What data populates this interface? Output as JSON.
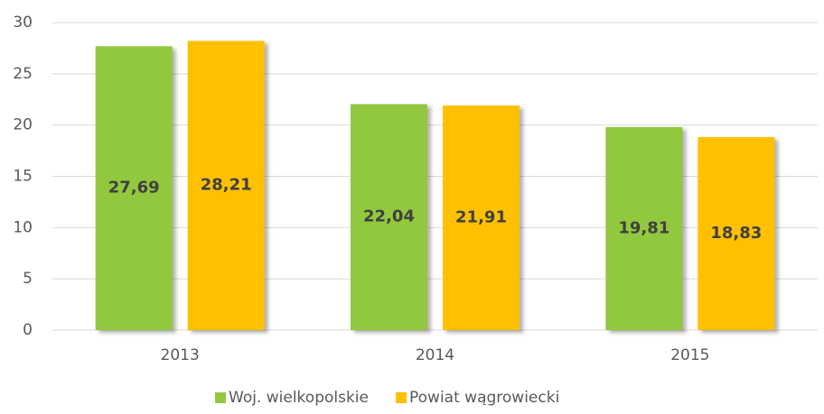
{
  "chart_data": {
    "type": "bar",
    "categories": [
      "2013",
      "2014",
      "2015"
    ],
    "series": [
      {
        "name": "Woj. wielkopolskie",
        "color": "#92c83e",
        "values": [
          27.69,
          22.04,
          19.81
        ],
        "value_labels": [
          "27,69",
          "22,04",
          "19,81"
        ]
      },
      {
        "name": "Powiat wągrowiecki",
        "color": "#ffc000",
        "values": [
          28.21,
          21.91,
          18.83
        ],
        "value_labels": [
          "28,21",
          "21,91",
          "18,83"
        ]
      }
    ],
    "ylim": [
      0,
      30
    ],
    "yticks": [
      0,
      5,
      10,
      15,
      20,
      25,
      30
    ],
    "grid": true,
    "legend": "bottom"
  }
}
